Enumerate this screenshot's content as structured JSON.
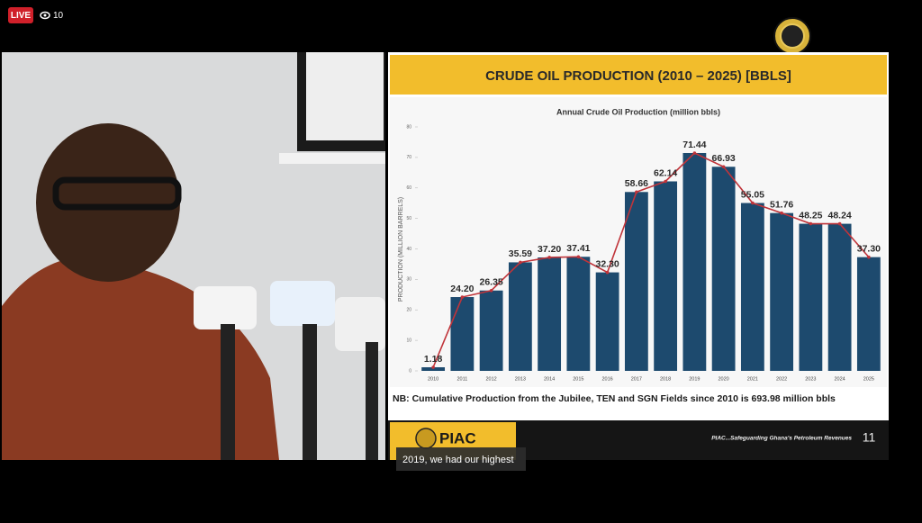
{
  "live_badge": "LIVE",
  "viewer_count": "10",
  "slide": {
    "title": "CRUDE OIL PRODUCTION (2010 – 2025) [BBLS]",
    "note": "NB: Cumulative Production from the Jubilee, TEN and SGN Fields since 2010 is 693.98 million bbls",
    "logo_text": "PIAC",
    "tagline": "PIAC...Safeguarding Ghana's Petroleum Revenues",
    "page_number": "11"
  },
  "caption": "2019, we had our highest",
  "chart_data": {
    "type": "bar",
    "title": "Annual Crude Oil Production (million bbls)",
    "ylabel": "PRODUCTION (MILLION BARRELS)",
    "categories": [
      "2010",
      "2011",
      "2012",
      "2013",
      "2014",
      "2015",
      "2016",
      "2017",
      "2018",
      "2019",
      "2020",
      "2021",
      "2022",
      "2023",
      "2024",
      "2025"
    ],
    "values": [
      1.18,
      24.2,
      26.35,
      35.59,
      37.2,
      37.41,
      32.3,
      58.66,
      62.14,
      71.44,
      66.93,
      55.05,
      51.76,
      48.25,
      48.24,
      37.3
    ],
    "value_labels": [
      "1.18",
      "24.20",
      "26.35",
      "35.59",
      "37.20",
      "37.41",
      "32.30",
      "58.66",
      "62.14",
      "71.44",
      "66.93",
      "55.05",
      "51.76",
      "48.25",
      "48.24",
      "37.30"
    ],
    "color": "#1d4a6e",
    "line_color": "#c0343a",
    "ylim": [
      0,
      80
    ],
    "yticks": [
      0,
      10,
      20,
      30,
      40,
      50,
      60,
      70,
      80
    ]
  }
}
